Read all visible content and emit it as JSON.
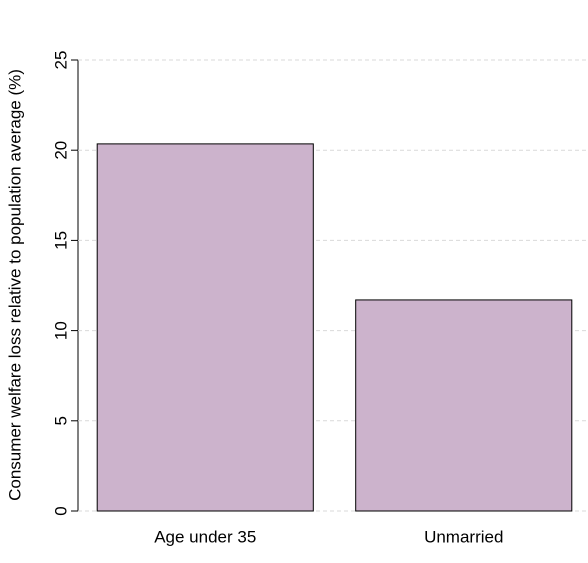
{
  "chart_data": {
    "type": "bar",
    "ylabel": "Consumer welfare loss relative to population average (%)",
    "categories": [
      "Age under 35",
      "Unmarried"
    ],
    "values": [
      20.35,
      11.7
    ],
    "color": "#ccb3cc",
    "ylim": [
      0,
      25
    ],
    "yticks": [
      0,
      5,
      10,
      15,
      20,
      25
    ],
    "grid": true
  }
}
